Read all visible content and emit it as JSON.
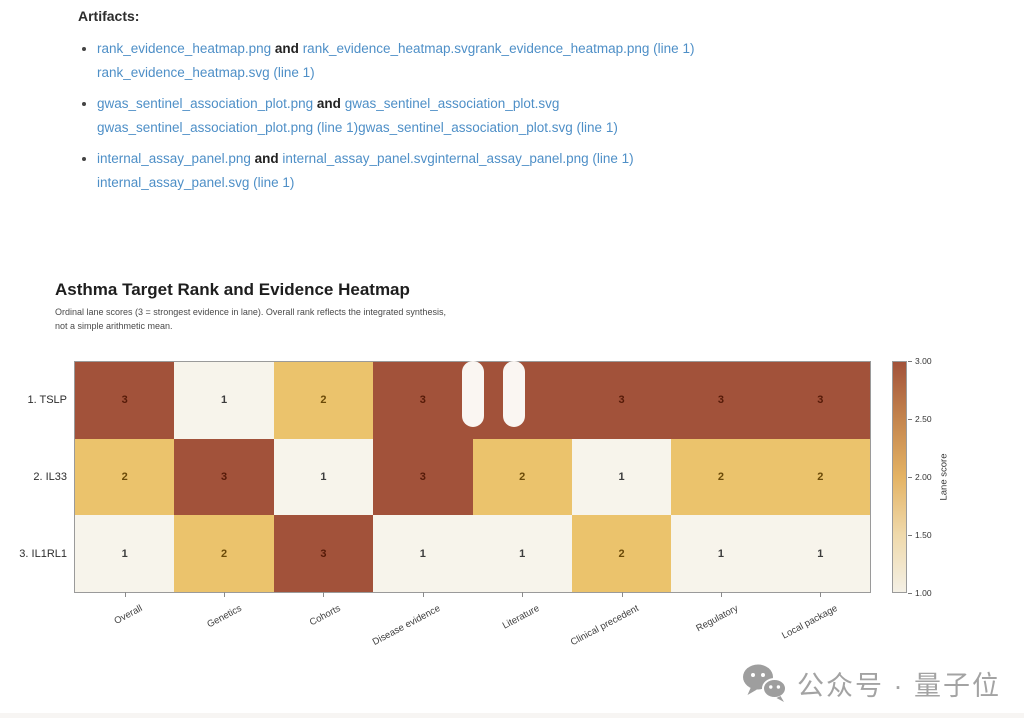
{
  "artifacts": {
    "heading": "Artifacts:",
    "items": [
      {
        "link1": "rank_evidence_heatmap.png",
        "conj": "and",
        "link2": "rank_evidence_heatmap.svgrank_evidence_heatmap.png (line 1)",
        "line2": "rank_evidence_heatmap.svg (line 1)"
      },
      {
        "link1": "gwas_sentinel_association_plot.png",
        "conj": "and",
        "link2": "gwas_sentinel_association_plot.svg",
        "line2": "gwas_sentinel_association_plot.png (line 1)gwas_sentinel_association_plot.svg (line 1)"
      },
      {
        "link1": "internal_assay_panel.png",
        "conj": "and",
        "link2": "internal_assay_panel.svginternal_assay_panel.png (line 1)",
        "line2": "internal_assay_panel.svg (line 1)"
      }
    ]
  },
  "chart_data": {
    "type": "heatmap",
    "title": "Asthma Target Rank and Evidence Heatmap",
    "subtitle_line1": "Ordinal lane scores (3 = strongest evidence in lane). Overall rank reflects the integrated synthesis,",
    "subtitle_line2": "not a simple arithmetic mean.",
    "categories": [
      "Overall",
      "Genetics",
      "Cohorts",
      "Disease evidence",
      "Literature",
      "Clinical precedent",
      "Regulatory",
      "Local package"
    ],
    "rows": [
      {
        "label": "1. TSLP",
        "values": [
          3,
          1,
          2,
          3,
          3,
          3,
          3,
          3
        ]
      },
      {
        "label": "2. IL33",
        "values": [
          2,
          3,
          1,
          3,
          2,
          1,
          2,
          2
        ]
      },
      {
        "label": "3. IL1RL1",
        "values": [
          1,
          2,
          3,
          1,
          1,
          2,
          1,
          1
        ]
      }
    ],
    "value_range": [
      1.0,
      3.0
    ],
    "colorbar": {
      "label": "Lane score",
      "ticks": [
        "3.00",
        "2.50",
        "2.00",
        "1.50",
        "1.00"
      ]
    },
    "legend_position": "right",
    "grid": false
  },
  "colors": {
    "link_blue": "#4e8fc7",
    "score_colors": {
      "1": "#f7f4eb",
      "2": "#ebc36c",
      "3": "#a2523a"
    },
    "value_text_colors": {
      "1": "#3c3c3c",
      "2": "#6b4a08",
      "3": "#551a08"
    },
    "colorbar_gradient": [
      "#a2523a",
      "#c4854e",
      "#e4b364",
      "#efd9ab",
      "#f4f0e5"
    ],
    "watermark_gray": "#a3a3a3"
  },
  "icons": {
    "pause": "pause-icon",
    "wechat": "wechat-icon"
  },
  "watermark": {
    "text": "公众号 · 量子位"
  }
}
